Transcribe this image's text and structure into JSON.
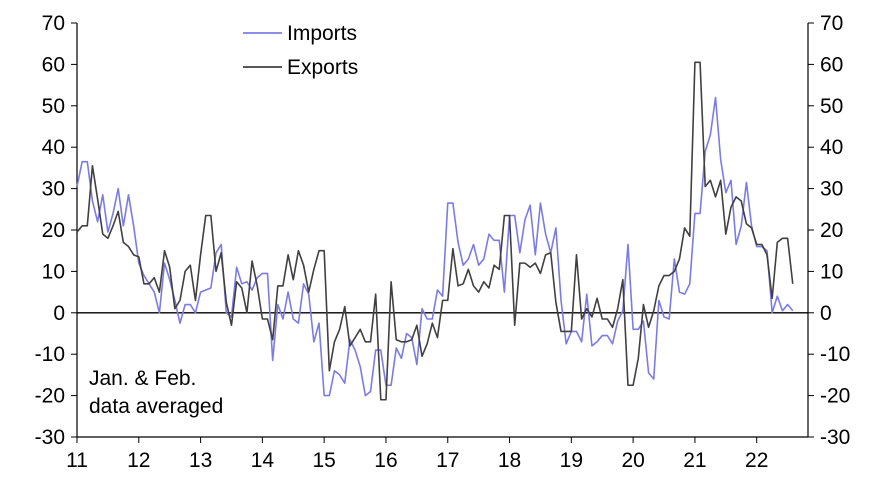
{
  "chart_data": {
    "type": "line",
    "title": "",
    "xlabel": "",
    "ylabel": "",
    "x_start": 2011.0,
    "x_step": 0.0833333,
    "xlim": [
      2011.0,
      2022.83
    ],
    "ylim": [
      -30,
      70
    ],
    "y_ticks": [
      -30,
      -20,
      -10,
      0,
      10,
      20,
      30,
      40,
      50,
      60,
      70
    ],
    "x_ticks": [
      {
        "value": 2011,
        "label": "11"
      },
      {
        "value": 2012,
        "label": "12"
      },
      {
        "value": 2013,
        "label": "13"
      },
      {
        "value": 2014,
        "label": "14"
      },
      {
        "value": 2015,
        "label": "15"
      },
      {
        "value": 2016,
        "label": "16"
      },
      {
        "value": 2017,
        "label": "17"
      },
      {
        "value": 2018,
        "label": "18"
      },
      {
        "value": 2019,
        "label": "19"
      },
      {
        "value": 2020,
        "label": "20"
      },
      {
        "value": 2021,
        "label": "21"
      },
      {
        "value": 2022,
        "label": "22"
      }
    ],
    "annotation": [
      "Jan. & Feb.",
      "data averaged"
    ],
    "legend_position": "top-center",
    "grid": false,
    "zero_line": true,
    "series": [
      {
        "name": "Imports",
        "color": "#7b7be6",
        "values": [
          30.5,
          36.5,
          36.5,
          27,
          22,
          28.5,
          19.5,
          24,
          30,
          21,
          28.5,
          21,
          12,
          9,
          7,
          5,
          0,
          12,
          8,
          3,
          -2.5,
          2,
          2,
          0,
          5,
          5.5,
          6,
          14.5,
          16.5,
          0,
          -1,
          11,
          7,
          7.5,
          5.5,
          8.5,
          9.5,
          9.5,
          -11.5,
          2,
          -1.5,
          5,
          -1.5,
          -2.5,
          7,
          4.5,
          -7,
          -2.5,
          -20,
          -20,
          -14,
          -15,
          -17,
          -6.5,
          -9,
          -13,
          -20,
          -19,
          -9,
          -9,
          -17.5,
          -17.5,
          -8.5,
          -11,
          -5,
          -6,
          -12.5,
          1,
          -1.5,
          -1.5,
          5.5,
          4,
          26.5,
          26.5,
          17,
          11.5,
          13,
          16.5,
          11.5,
          13,
          19,
          17.5,
          17.5,
          5,
          23.5,
          23.5,
          14.5,
          22.5,
          26,
          14,
          26.5,
          19,
          14.5,
          20.5,
          3,
          -7.5,
          -4.5,
          -4.5,
          -7,
          4.5,
          -8,
          -7,
          -5.5,
          -5.5,
          -7.5,
          -2,
          0.5,
          16.5,
          -4,
          -4,
          -2,
          -14.5,
          -16,
          3,
          -1,
          -1.5,
          13,
          5,
          4.5,
          7,
          24,
          24,
          39,
          43,
          52,
          37,
          29,
          32,
          16.5,
          21,
          31.5,
          21,
          16,
          16,
          15,
          0,
          4,
          0.5,
          2,
          0.5
        ]
      },
      {
        "name": "Exports",
        "color": "#404040",
        "values": [
          19.5,
          21,
          21,
          35.5,
          27.5,
          19,
          18,
          21,
          24.5,
          17,
          16,
          14,
          13.5,
          7,
          7,
          8.5,
          5,
          15,
          11,
          1,
          3,
          10,
          11.5,
          3,
          14,
          23.5,
          23.5,
          10,
          14.5,
          2.5,
          -3,
          7.5,
          6,
          0,
          12.5,
          6.5,
          -1.5,
          -1.5,
          -6.5,
          6.5,
          6.5,
          14,
          8,
          15,
          11.5,
          5,
          10.5,
          15,
          15,
          -14,
          -7,
          -4,
          1.5,
          -8,
          -6,
          -4,
          -7,
          -7,
          4.5,
          -21,
          -21,
          7.5,
          -6.5,
          -7,
          -7,
          -6.5,
          -3,
          -10.5,
          -7.5,
          -2.5,
          -6,
          3,
          3,
          15.5,
          6.5,
          7,
          10.5,
          6.5,
          5,
          7.5,
          6,
          11.5,
          10.5,
          23.5,
          23.5,
          -3,
          12,
          12,
          11,
          12,
          9.5,
          14,
          14.5,
          2.5,
          -4.5,
          -4.5,
          -4.5,
          14,
          -1.5,
          1,
          -1,
          3.5,
          -1.5,
          -1.5,
          -3.5,
          1,
          8,
          -17.5,
          -17.5,
          -11,
          2,
          -3.5,
          0.5,
          6.5,
          9,
          9,
          10,
          13,
          20.5,
          18.5,
          60.5,
          60.5,
          30.5,
          32,
          28,
          32,
          19,
          25.5,
          28,
          27,
          21.5,
          20.5,
          16.5,
          16.5,
          14,
          3.5,
          17,
          18,
          18,
          7
        ]
      }
    ]
  }
}
